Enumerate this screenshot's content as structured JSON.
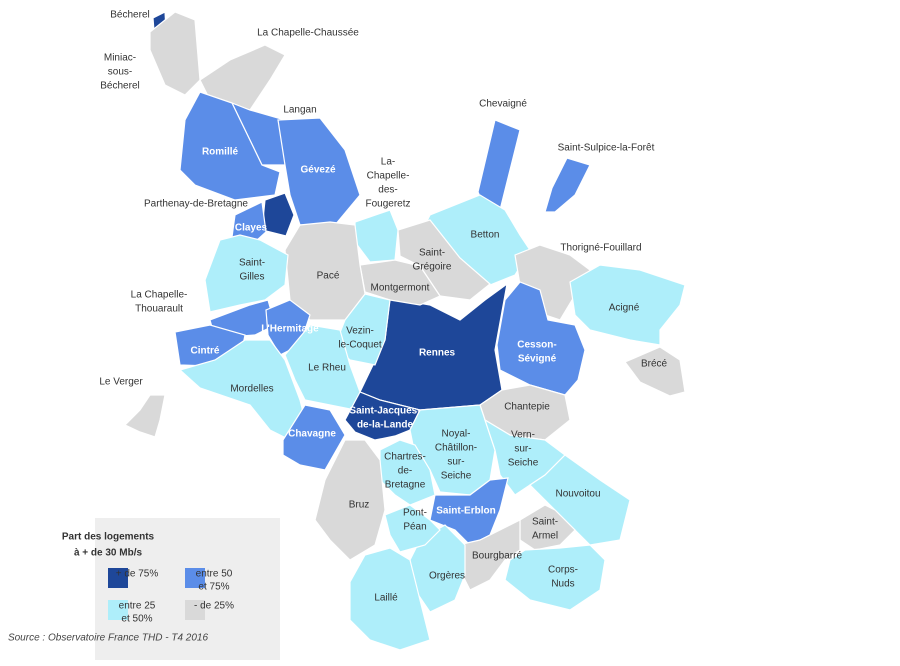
{
  "map": {
    "legend": {
      "title": [
        "Part des logements",
        "à + de 30 Mb/s"
      ],
      "classes": [
        {
          "label": [
            "+ de 75%"
          ],
          "color": "#1e4799"
        },
        {
          "label": [
            "entre 50",
            "et 75%"
          ],
          "color": "#5b8de8"
        },
        {
          "label": [
            "entre 25",
            "et 50%"
          ],
          "color": "#aeeefa"
        },
        {
          "label": [
            "- de 25%"
          ],
          "color": "#d9d9d9"
        }
      ],
      "source": "Source : Observatoire France THD - T4 2016"
    },
    "communes": [
      {
        "name": [
          "Bécherel"
        ],
        "class": 0
      },
      {
        "name": [
          "Miniac-",
          "sous-",
          "Bécherel"
        ],
        "class": 3
      },
      {
        "name": [
          "La Chapelle-Chaussée"
        ],
        "class": 3
      },
      {
        "name": [
          "Langan"
        ],
        "class": 1
      },
      {
        "name": [
          "Romillé"
        ],
        "class": 1
      },
      {
        "name": [
          "Gévezé"
        ],
        "class": 1
      },
      {
        "name": [
          "Parthenay-de-Bretagne"
        ],
        "class": 0
      },
      {
        "name": [
          "Clayes"
        ],
        "class": 1
      },
      {
        "name": [
          "La-",
          "Chapelle-",
          "des-",
          "Fougeretz"
        ],
        "class": 2
      },
      {
        "name": [
          "Chevaigné"
        ],
        "class": 1
      },
      {
        "name": [
          "Saint-Sulpice-la-Forêt"
        ],
        "class": 1
      },
      {
        "name": [
          "Betton"
        ],
        "class": 2
      },
      {
        "name": [
          "Saint-",
          "Grégoire"
        ],
        "class": 3
      },
      {
        "name": [
          "Thorigné-Fouillard"
        ],
        "class": 3
      },
      {
        "name": [
          "Acigné"
        ],
        "class": 2
      },
      {
        "name": [
          "Brécé"
        ],
        "class": 3
      },
      {
        "name": [
          "Cesson-",
          "Sévigné"
        ],
        "class": 1
      },
      {
        "name": [
          "Rennes"
        ],
        "class": 0
      },
      {
        "name": [
          "Montgermont"
        ],
        "class": 3
      },
      {
        "name": [
          "Pacé"
        ],
        "class": 3
      },
      {
        "name": [
          "Saint-",
          "Gilles"
        ],
        "class": 2
      },
      {
        "name": [
          "La Chapelle-",
          "Thouarault"
        ],
        "class": 1
      },
      {
        "name": [
          "L'Hermitage"
        ],
        "class": 1
      },
      {
        "name": [
          "Cintré"
        ],
        "class": 1
      },
      {
        "name": [
          "Vezin-",
          "le-Coquet"
        ],
        "class": 2
      },
      {
        "name": [
          "Le Rheu"
        ],
        "class": 2
      },
      {
        "name": [
          "Mordelles"
        ],
        "class": 2
      },
      {
        "name": [
          "Le Verger"
        ],
        "class": 3
      },
      {
        "name": [
          "Chavagne"
        ],
        "class": 1
      },
      {
        "name": [
          "Saint-Jacques-",
          "de-la-Lande"
        ],
        "class": 0
      },
      {
        "name": [
          "Chantepie"
        ],
        "class": 3
      },
      {
        "name": [
          "Noyal-",
          "Châtillon-",
          "sur-",
          "Seiche"
        ],
        "class": 2
      },
      {
        "name": [
          "Chartres-",
          "de-",
          "Bretagne"
        ],
        "class": 2
      },
      {
        "name": [
          "Vern-",
          "sur-",
          "Seiche"
        ],
        "class": 2
      },
      {
        "name": [
          "Nouvoitou"
        ],
        "class": 2
      },
      {
        "name": [
          "Saint-",
          "Armel"
        ],
        "class": 3
      },
      {
        "name": [
          "Saint-Erblon"
        ],
        "class": 1
      },
      {
        "name": [
          "Bourgbarré"
        ],
        "class": 3
      },
      {
        "name": [
          "Corps-",
          "Nuds"
        ],
        "class": 2
      },
      {
        "name": [
          "Orgères"
        ],
        "class": 2
      },
      {
        "name": [
          "Pont-",
          "Péan"
        ],
        "class": 2
      },
      {
        "name": [
          "Bruz"
        ],
        "class": 3
      },
      {
        "name": [
          "Laillé"
        ],
        "class": 2
      }
    ]
  }
}
